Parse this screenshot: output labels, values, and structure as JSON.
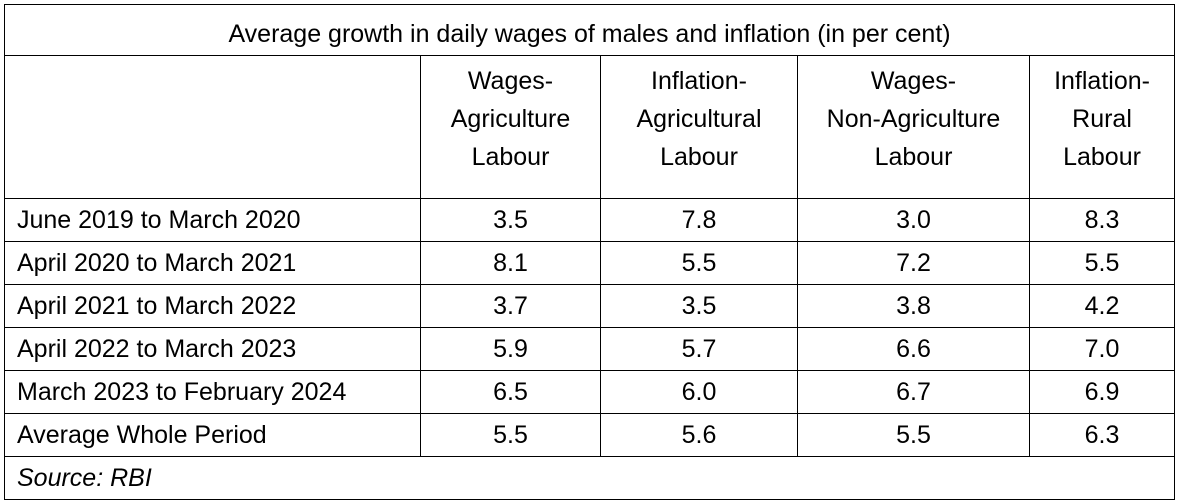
{
  "table": {
    "title": "Average growth in daily wages of males and inflation (in per cent)",
    "columns": [
      {
        "lines": [
          "Wages-",
          "Agriculture",
          "Labour"
        ]
      },
      {
        "lines": [
          "Inflation-",
          "Agricultural",
          "Labour"
        ]
      },
      {
        "lines": [
          "Wages-",
          "Non-Agriculture",
          "Labour"
        ]
      },
      {
        "lines": [
          "Inflation-",
          "Rural",
          "Labour"
        ]
      }
    ],
    "rows": [
      {
        "label": "June 2019 to March 2020",
        "values": [
          "3.5",
          "7.8",
          "3.0",
          "8.3"
        ]
      },
      {
        "label": "April 2020 to March 2021",
        "values": [
          "8.1",
          "5.5",
          "7.2",
          "5.5"
        ]
      },
      {
        "label": "April 2021 to March 2022",
        "values": [
          "3.7",
          "3.5",
          "3.8",
          "4.2"
        ]
      },
      {
        "label": "April 2022 to March 2023",
        "values": [
          "5.9",
          "5.7",
          "6.6",
          "7.0"
        ]
      },
      {
        "label": "March 2023 to February 2024",
        "values": [
          "6.5",
          "6.0",
          "6.7",
          "6.9"
        ]
      },
      {
        "label": "Average Whole Period",
        "values": [
          "5.5",
          "5.6",
          "5.5",
          "6.3"
        ]
      }
    ],
    "source": "Source: RBI"
  }
}
